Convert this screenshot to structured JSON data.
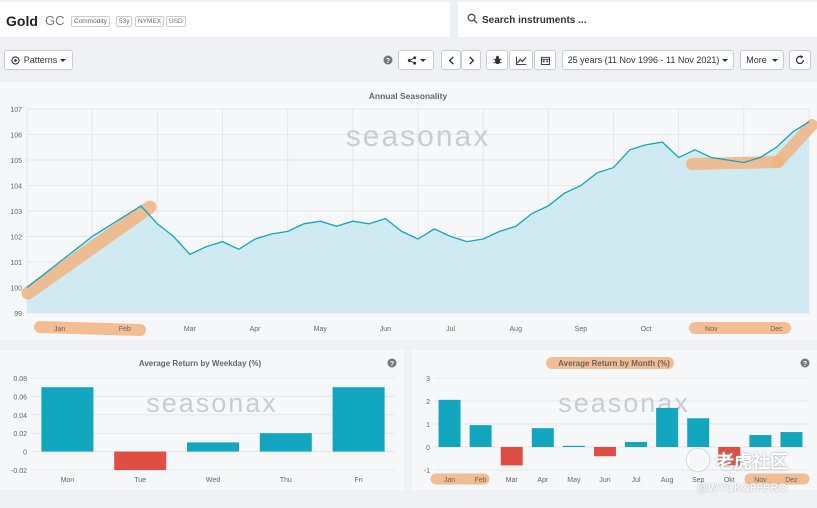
{
  "header": {
    "name": "Gold",
    "symbol": "GC",
    "tags": [
      "Commodity",
      "53y",
      "NYMEX",
      "USD"
    ]
  },
  "search": {
    "placeholder": "Search instruments ..."
  },
  "toolbar": {
    "patterns_label": "Patterns",
    "range_label": "25 years (11 Nov 1996 - 11 Nov 2021)",
    "more_label": "More"
  },
  "watermark": {
    "brand": "seasonax",
    "cn_text": "老虎社区",
    "handle": "@WYCKOFFPRO"
  },
  "colors": {
    "accent": "#13a7bf",
    "negative": "#e04d43",
    "highlight": "#f2b482",
    "area": "#cfeaf0"
  },
  "icons": [
    "search-icon",
    "target-icon",
    "help-icon",
    "share-icon",
    "chevron-left-icon",
    "chevron-right-icon",
    "bug-icon",
    "line-chart-icon",
    "calendar-icon",
    "reset-icon"
  ],
  "chart_data": [
    {
      "type": "line",
      "title": "Annual Seasonality",
      "categories": [
        "Jan",
        "Feb",
        "Mar",
        "Apr",
        "May",
        "Jun",
        "Jul",
        "Aug",
        "Sep",
        "Oct",
        "Nov",
        "Dec"
      ],
      "y_ticks": [
        "99",
        "100",
        "101",
        "102",
        "103",
        "104",
        "105",
        "106",
        "107"
      ],
      "ylim": [
        99,
        107
      ],
      "x": [
        0,
        0.25,
        0.5,
        0.75,
        1.0,
        1.25,
        1.5,
        1.75,
        2.0,
        2.25,
        2.5,
        2.75,
        3.0,
        3.25,
        3.5,
        3.75,
        4.0,
        4.25,
        4.5,
        4.75,
        5.0,
        5.25,
        5.5,
        5.75,
        6.0,
        6.25,
        6.5,
        6.75,
        7.0,
        7.25,
        7.5,
        7.75,
        8.0,
        8.25,
        8.5,
        8.75,
        9.0,
        9.25,
        9.5,
        9.75,
        10.0,
        10.25,
        10.5,
        10.75,
        11.0,
        11.25,
        11.5,
        11.75,
        12.0
      ],
      "values": [
        100.0,
        100.5,
        101.0,
        101.5,
        102.0,
        102.4,
        102.8,
        103.2,
        102.5,
        102.0,
        101.3,
        101.6,
        101.8,
        101.5,
        101.9,
        102.1,
        102.2,
        102.5,
        102.6,
        102.4,
        102.6,
        102.5,
        102.7,
        102.2,
        101.9,
        102.3,
        102.0,
        101.8,
        101.9,
        102.2,
        102.4,
        102.9,
        103.2,
        103.7,
        104.0,
        104.5,
        104.7,
        105.4,
        105.6,
        105.7,
        105.1,
        105.4,
        105.1,
        105.0,
        104.9,
        105.1,
        105.5,
        106.1,
        106.5
      ]
    },
    {
      "type": "bar",
      "title": "Average Return by Weekday (%)",
      "categories": [
        "Mon",
        "Tue",
        "Wed",
        "Thu",
        "Fri"
      ],
      "values": [
        0.07,
        -0.02,
        0.01,
        0.02,
        0.07
      ],
      "y_ticks": [
        "0.08",
        "0.06",
        "0.04",
        "0.02",
        "0",
        "-0.02"
      ],
      "ylim": [
        -0.02,
        0.08
      ]
    },
    {
      "type": "bar",
      "title": "Average Return by Month (%)",
      "categories": [
        "Jan",
        "Feb",
        "Mar",
        "Apr",
        "May",
        "Jun",
        "Jul",
        "Aug",
        "Sep",
        "Okt",
        "Nov",
        "Dez"
      ],
      "values": [
        2.05,
        0.95,
        -0.8,
        0.82,
        0.05,
        -0.4,
        0.22,
        1.7,
        1.25,
        -0.8,
        0.52,
        0.65
      ],
      "y_ticks": [
        "3",
        "2",
        "1",
        "0",
        "-1"
      ],
      "ylim": [
        -1,
        3
      ]
    }
  ]
}
